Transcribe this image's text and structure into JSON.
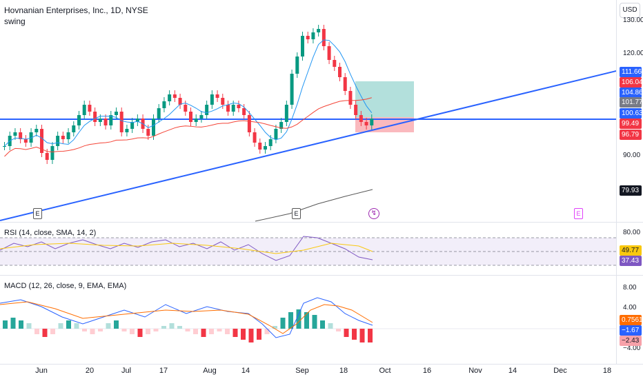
{
  "header": {
    "title": "Hovnanian Enterprises, Inc., 1D, NYSE",
    "indicator": "swing"
  },
  "currency": "USD",
  "price_axis": {
    "ticks": [
      "130.00",
      "120.00",
      "90.00"
    ],
    "badges": [
      {
        "text": "111.66",
        "color": "#2962ff"
      },
      {
        "text": "106.04",
        "color": "#f23645"
      },
      {
        "text": "104.86",
        "color": "#2962ff"
      },
      {
        "text": "101.77",
        "color": "#787b86"
      },
      {
        "text": "100.63",
        "color": "#2962ff"
      },
      {
        "text": "99.49",
        "color": "#f23645"
      },
      {
        "text": "96.79",
        "color": "#f23645"
      },
      {
        "text": "79.93",
        "color": "#131722"
      }
    ]
  },
  "rsi": {
    "title": "RSI (14, close, SMA, 14, 2)",
    "ticks": [
      "80.00"
    ],
    "badges": [
      {
        "text": "49.77",
        "color": "#f9c80e"
      },
      {
        "text": "37.43",
        "color": "#7e57c2"
      }
    ]
  },
  "macd": {
    "title": "MACD (12, 26, close, 9, EMA, EMA)",
    "ticks": [
      "8.00",
      "4.00",
      "−4.00"
    ],
    "badges": [
      {
        "text": "0.7561",
        "color": "#ff6d00"
      },
      {
        "text": "−1.67",
        "color": "#2962ff"
      },
      {
        "text": "−2.43",
        "color": "#f7a1a9"
      }
    ]
  },
  "time_axis": [
    "Jun",
    "20",
    "Jul",
    "17",
    "Aug",
    "14",
    "Sep",
    "18",
    "Oct",
    "16",
    "Nov",
    "14",
    "Dec",
    "18"
  ],
  "markers": [
    "E",
    "E",
    "E"
  ],
  "chart_data": {
    "type": "candlestick",
    "close_approx": [
      92,
      95,
      96,
      94,
      93,
      96,
      97,
      90,
      88,
      92,
      95,
      94,
      96,
      98,
      101,
      104,
      102,
      99,
      100,
      98,
      101,
      102,
      96,
      97,
      99,
      100,
      97,
      95,
      100,
      103,
      105,
      107,
      106,
      104,
      102,
      99,
      100,
      101,
      104,
      107,
      106,
      104,
      102,
      104,
      103,
      101,
      96,
      93,
      91,
      92,
      94,
      97,
      99,
      104,
      113,
      118,
      124,
      123,
      125,
      126,
      121,
      117,
      115,
      112,
      108,
      104,
      101,
      99,
      98,
      100
    ]
  }
}
